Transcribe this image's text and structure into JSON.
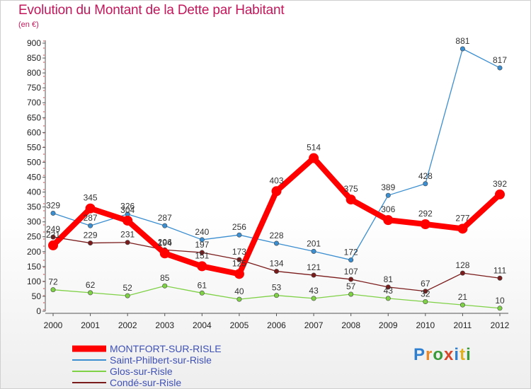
{
  "title": "Evolution du Montant de la Dette par Habitant",
  "subtitle": "(en €)",
  "brand": "Proxiti",
  "chart_data": {
    "type": "line",
    "x": [
      "2000",
      "2001",
      "2002",
      "2003",
      "2004",
      "2005",
      "2006",
      "2007",
      "2008",
      "2009",
      "2010",
      "2011",
      "2012"
    ],
    "ylim": [
      0,
      900
    ],
    "yticks": [
      0,
      50,
      100,
      150,
      200,
      250,
      300,
      350,
      400,
      450,
      500,
      550,
      600,
      650,
      700,
      750,
      800,
      850,
      900
    ],
    "grid": false,
    "legend_position": "bottom-left",
    "series": [
      {
        "name": "MONTFORT-SUR-RISLE",
        "color": "#ff0000",
        "emphasis": true,
        "values": [
          221,
          345,
          304,
          194,
          151,
          125,
          403,
          514,
          375,
          306,
          292,
          277,
          392
        ]
      },
      {
        "name": "Saint-Philbert-sur-Risle",
        "color": "#3b8ed0",
        "values": [
          329,
          287,
          326,
          287,
          240,
          256,
          228,
          201,
          172,
          389,
          428,
          881,
          817
        ]
      },
      {
        "name": "Glos-sur-Risle",
        "color": "#7fd146",
        "values": [
          72,
          62,
          52,
          85,
          61,
          40,
          53,
          43,
          57,
          43,
          32,
          21,
          10
        ]
      },
      {
        "name": "Condé-sur-Risle",
        "color": "#7b1c1c",
        "values": [
          249,
          229,
          231,
          206,
          197,
          173,
          134,
          121,
          107,
          81,
          67,
          128,
          111
        ]
      }
    ]
  }
}
